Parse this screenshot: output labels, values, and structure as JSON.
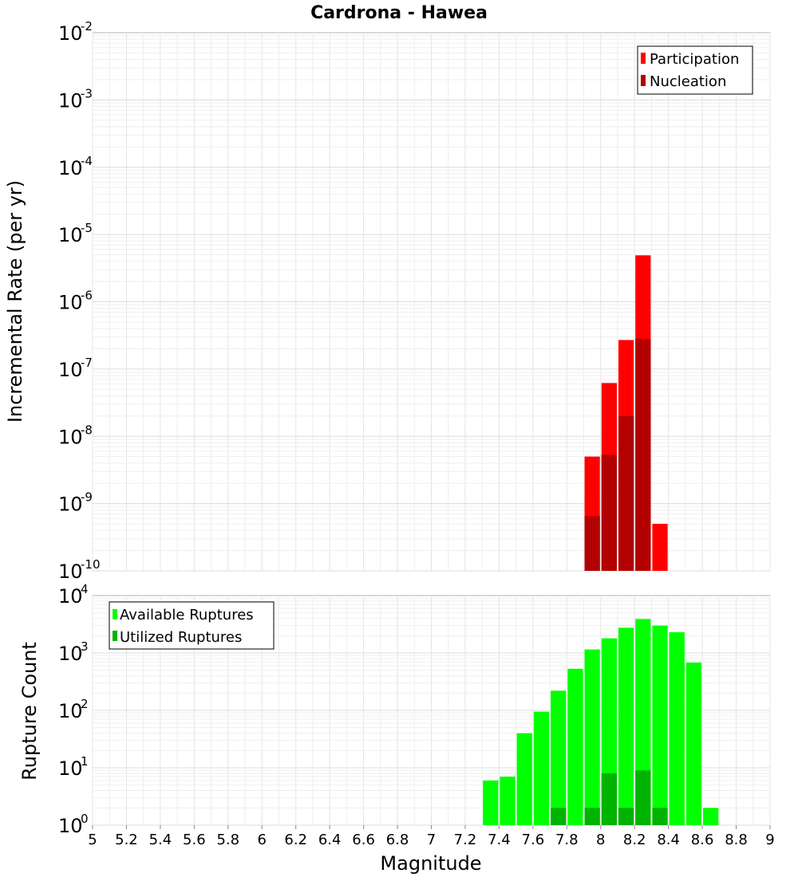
{
  "chart_data": [
    {
      "type": "bar",
      "title": "Cardrona - Hawea",
      "xlabel": "",
      "ylabel": "Incremental Rate (per yr)",
      "yscale": "log",
      "ylim_exp": [
        -10,
        -2
      ],
      "xlim": [
        5,
        9
      ],
      "grid": true,
      "legend_position": "top-right",
      "bin_width": 0.1,
      "series": [
        {
          "name": "Participation",
          "color": "#ff0000",
          "x": [
            7.95,
            8.05,
            8.15,
            8.25,
            8.35
          ],
          "values": [
            5e-09,
            6.2e-08,
            2.7e-07,
            4.9e-06,
            5e-10
          ]
        },
        {
          "name": "Nucleation",
          "color": "#b30000",
          "x": [
            7.95,
            8.05,
            8.15,
            8.25
          ],
          "values": [
            6.5e-10,
            5.3e-09,
            2e-08,
            2.8e-07
          ]
        }
      ]
    },
    {
      "type": "bar",
      "title": "",
      "xlabel": "Magnitude",
      "ylabel": "Rupture Count",
      "yscale": "log",
      "ylim_exp": [
        0,
        4
      ],
      "xlim": [
        5,
        9
      ],
      "grid": true,
      "legend_position": "top-left",
      "bin_width": 0.1,
      "series": [
        {
          "name": "Available Ruptures",
          "color": "#00ff00",
          "x": [
            7.05,
            7.35,
            7.45,
            7.55,
            7.65,
            7.75,
            7.85,
            7.95,
            8.05,
            8.15,
            8.25,
            8.35,
            8.45,
            8.55,
            8.65
          ],
          "values": [
            1,
            6,
            7,
            40,
            95,
            220,
            530,
            1150,
            1800,
            2750,
            3900,
            3000,
            2300,
            680,
            2
          ]
        },
        {
          "name": "Utilized Ruptures",
          "color": "#00b300",
          "x": [
            7.75,
            7.95,
            8.05,
            8.15,
            8.25,
            8.35
          ],
          "values": [
            2,
            2,
            8,
            2,
            9,
            2
          ]
        }
      ],
      "x_ticks": [
        "5",
        "5.2",
        "5.4",
        "5.6",
        "5.8",
        "6",
        "6.2",
        "6.4",
        "6.6",
        "6.8",
        "7",
        "7.2",
        "7.4",
        "7.6",
        "7.8",
        "8",
        "8.2",
        "8.4",
        "8.6",
        "8.8",
        "9"
      ]
    }
  ]
}
